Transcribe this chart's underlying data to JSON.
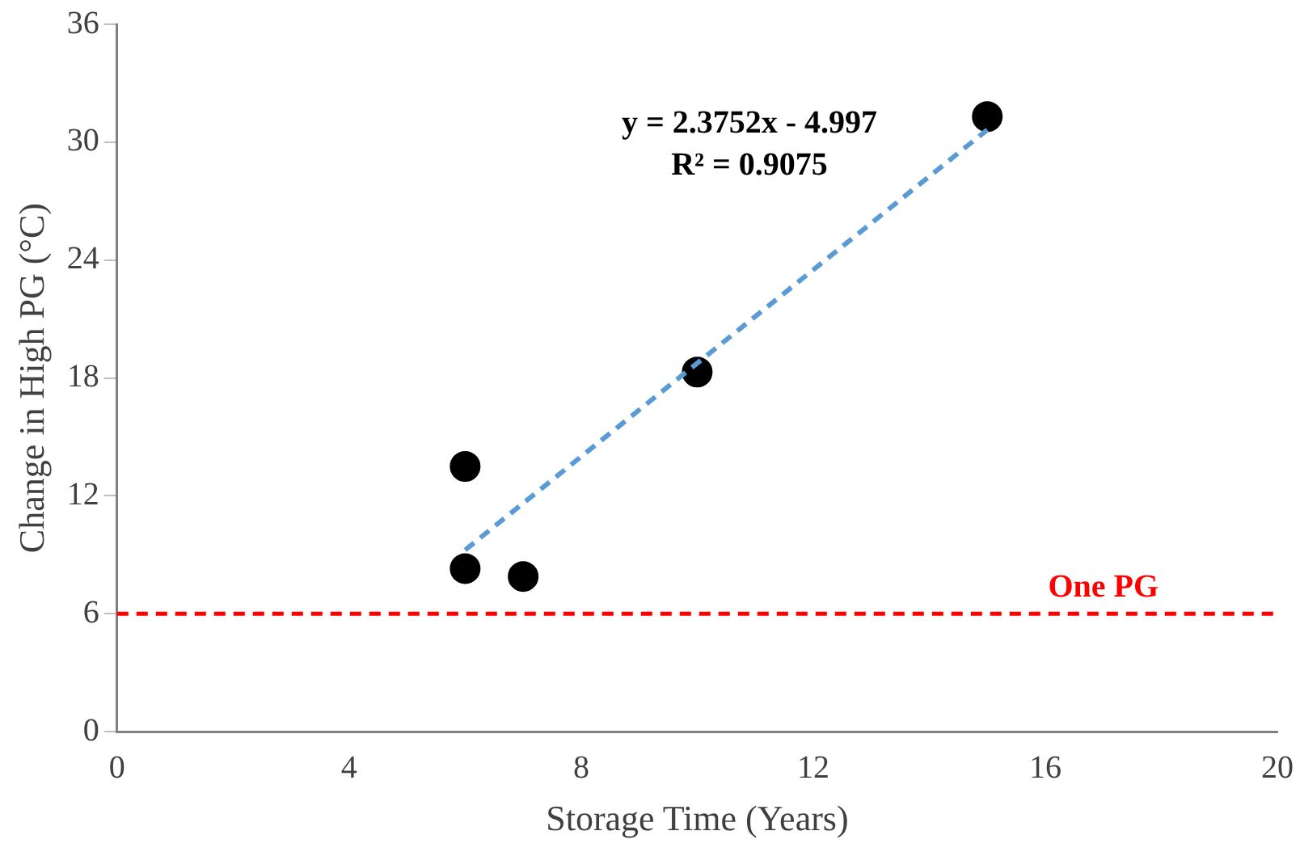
{
  "chart_data": {
    "type": "scatter",
    "xlabel": "Storage Time (Years)",
    "ylabel": "Change in High PG (°C)",
    "series": [
      {
        "color": "#000000",
        "x": [
          6,
          6,
          7,
          10,
          15
        ],
        "values": [
          13.5,
          8.3,
          7.9,
          18.3,
          31.3
        ],
        "marker": "circle"
      },
      {
        "type": "line",
        "color": "#5b9bd5",
        "x": [
          6,
          15
        ],
        "values": [
          9.25,
          30.63
        ],
        "line_style": "dashed",
        "marker": "none"
      }
    ],
    "xlim": [
      0,
      20
    ],
    "xticks": [
      0,
      4,
      8,
      12,
      16,
      20
    ],
    "ylim": [
      0,
      36
    ],
    "yticks": [
      0,
      6,
      12,
      18,
      24,
      30,
      36
    ],
    "ref_lines": [
      {
        "axis": "y",
        "value": 6,
        "label": "One PG",
        "color": "#ff0000",
        "line_style": "dashed"
      }
    ],
    "annotations": [
      "y = 2.3752x - 4.997",
      "R² = 0.9075"
    ],
    "grid": false,
    "legend": false
  }
}
